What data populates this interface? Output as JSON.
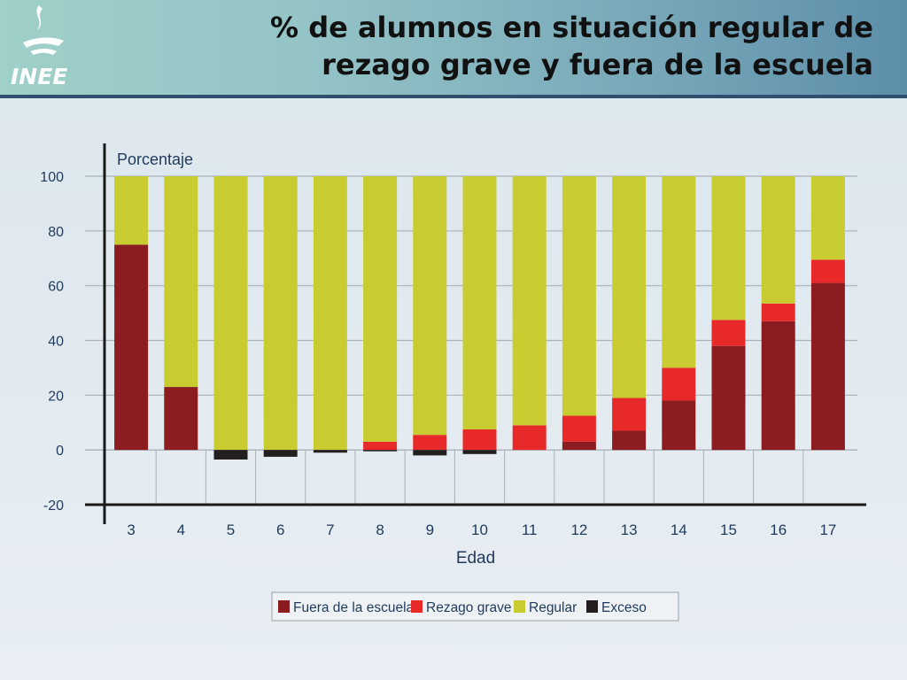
{
  "header": {
    "title_line1": "% de alumnos en situación regular de",
    "title_line2": "rezago grave y fuera de la escuela",
    "logo_text": "INEE"
  },
  "colors": {
    "fuera": "#8b1c20",
    "rezago": "#e8292a",
    "regular": "#c9cc30",
    "exceso": "#231f20"
  },
  "chart_data": {
    "type": "bar",
    "stacked": true,
    "ylabel": "Porcentaje",
    "xlabel": "Edad",
    "ylim": [
      -20,
      100
    ],
    "yticks": [
      100,
      80,
      60,
      40,
      20,
      0,
      -20
    ],
    "grid": true,
    "legend_position": "bottom",
    "categories": [
      "3",
      "4",
      "5",
      "6",
      "7",
      "8",
      "9",
      "10",
      "11",
      "12",
      "13",
      "14",
      "15",
      "16",
      "17"
    ],
    "series": [
      {
        "name": "Fuera de la escuela",
        "color_key": "fuera",
        "values": [
          75,
          23,
          0,
          0,
          0,
          0,
          0,
          0,
          0,
          3,
          7,
          18,
          38,
          47,
          61
        ]
      },
      {
        "name": "Rezago grave",
        "color_key": "rezago",
        "values": [
          0,
          0,
          0,
          0,
          0,
          3,
          5.5,
          7.5,
          9,
          9.5,
          12,
          12,
          9.5,
          6.5,
          8.5
        ]
      },
      {
        "name": "Regular",
        "color_key": "regular",
        "values": [
          25,
          77,
          100,
          100,
          100,
          97,
          94.5,
          92.5,
          91,
          87.5,
          81,
          70,
          52.5,
          46.5,
          30.5
        ]
      },
      {
        "name": "Exceso",
        "color_key": "exceso",
        "values": [
          0,
          0,
          -3.5,
          -2.5,
          -1,
          -0.5,
          -2,
          -1.5,
          0,
          0,
          0,
          0,
          0,
          0,
          0
        ]
      }
    ]
  }
}
